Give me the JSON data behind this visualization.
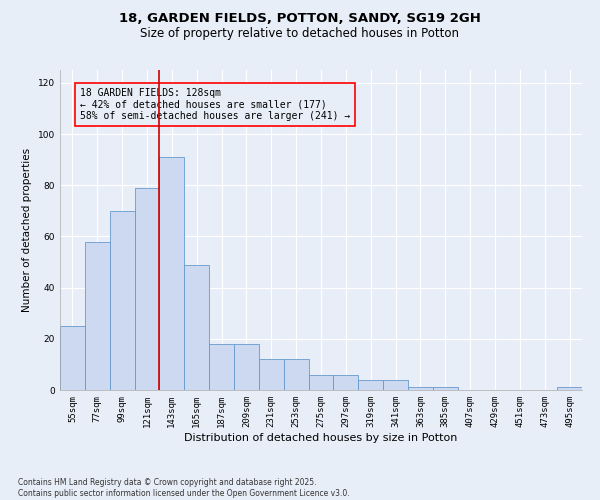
{
  "title_line1": "18, GARDEN FIELDS, POTTON, SANDY, SG19 2GH",
  "title_line2": "Size of property relative to detached houses in Potton",
  "xlabel": "Distribution of detached houses by size in Potton",
  "ylabel": "Number of detached properties",
  "categories": [
    "55sqm",
    "77sqm",
    "99sqm",
    "121sqm",
    "143sqm",
    "165sqm",
    "187sqm",
    "209sqm",
    "231sqm",
    "253sqm",
    "275sqm",
    "297sqm",
    "319sqm",
    "341sqm",
    "363sqm",
    "385sqm",
    "407sqm",
    "429sqm",
    "451sqm",
    "473sqm",
    "495sqm"
  ],
  "values": [
    25,
    58,
    70,
    79,
    91,
    49,
    18,
    18,
    12,
    12,
    6,
    6,
    4,
    4,
    1,
    1,
    0,
    0,
    0,
    0,
    1
  ],
  "bar_color": "#ccd9f0",
  "bar_edge_color": "#6699cc",
  "vline_x": 3.5,
  "vline_color": "#cc0000",
  "annotation_text": "18 GARDEN FIELDS: 128sqm\n← 42% of detached houses are smaller (177)\n58% of semi-detached houses are larger (241) →",
  "ylim": [
    0,
    125
  ],
  "yticks": [
    0,
    20,
    40,
    60,
    80,
    100,
    120
  ],
  "background_color": "#e8eef8",
  "footer_text": "Contains HM Land Registry data © Crown copyright and database right 2025.\nContains public sector information licensed under the Open Government Licence v3.0.",
  "title_fontsize": 9.5,
  "subtitle_fontsize": 8.5,
  "xlabel_fontsize": 8,
  "ylabel_fontsize": 7.5,
  "tick_fontsize": 6.5,
  "annotation_fontsize": 7,
  "footer_fontsize": 5.5
}
